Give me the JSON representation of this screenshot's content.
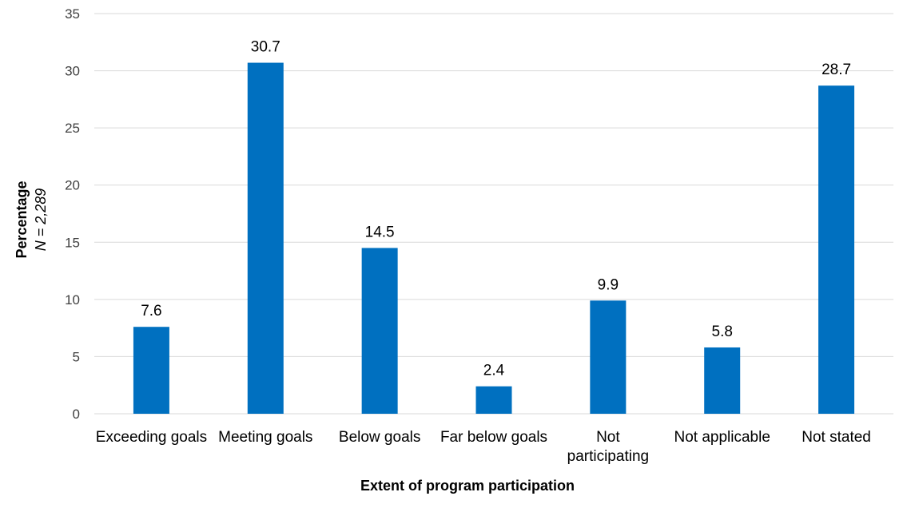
{
  "chart_data": {
    "type": "bar",
    "categories": [
      "Exceeding goals",
      "Meeting goals",
      "Below goals",
      "Far below goals",
      "Not participating",
      "Not applicable",
      "Not stated"
    ],
    "category_lines": [
      [
        "Exceeding goals"
      ],
      [
        "Meeting goals"
      ],
      [
        "Below goals"
      ],
      [
        "Far below goals"
      ],
      [
        "Not",
        "participating"
      ],
      [
        "Not applicable"
      ],
      [
        "Not stated"
      ]
    ],
    "values": [
      7.6,
      30.7,
      14.5,
      2.4,
      9.9,
      5.8,
      28.7
    ],
    "value_labels": [
      "7.6",
      "30.7",
      "14.5",
      "2.4",
      "9.9",
      "5.8",
      "28.7"
    ],
    "xlabel": "Extent of program participation",
    "ylabel": "Percentage",
    "ylabel_sub": "N = 2,289",
    "ylim": [
      0,
      35
    ],
    "yticks": [
      0,
      5,
      10,
      15,
      20,
      25,
      30,
      35
    ],
    "grid": true,
    "legend": "none",
    "bar_color": "#0070C0",
    "grid_color": "#D9D9D9"
  }
}
